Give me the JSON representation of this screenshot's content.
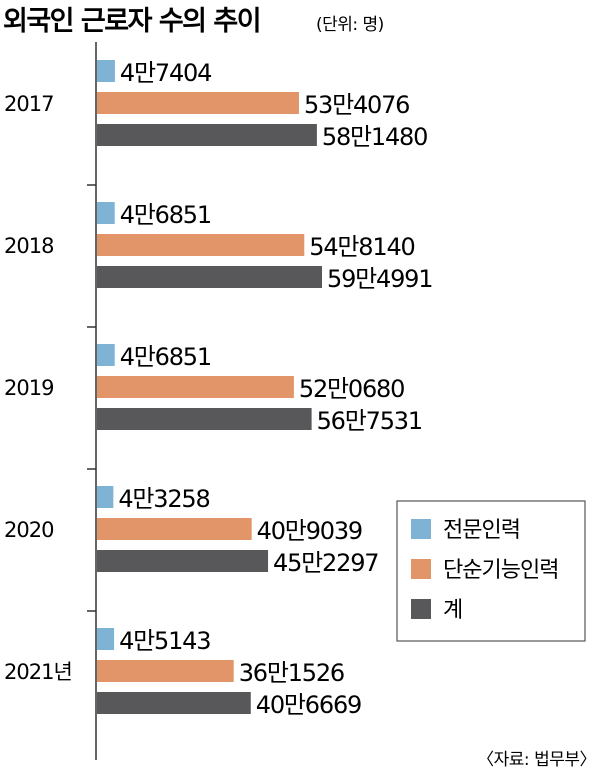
{
  "chart_data": {
    "type": "bar",
    "orientation": "horizontal",
    "title": "외국인 근로자 수의 추이",
    "unit_label": "(단위: 명)",
    "source": "〈자료: 법무부〉",
    "categories": [
      "2017",
      "2018",
      "2019",
      "2020",
      "2021년"
    ],
    "series": [
      {
        "name": "전문인력",
        "color": "#7fb3d5",
        "values": [
          47404,
          46851,
          46851,
          43258,
          45143
        ],
        "labels": [
          "4만7404",
          "4만6851",
          "4만6851",
          "4만3258",
          "4만5143"
        ]
      },
      {
        "name": "단순기능인력",
        "color": "#e3956a",
        "values": [
          534076,
          548140,
          520680,
          409039,
          361526
        ],
        "labels": [
          "53만4076",
          "54만8140",
          "52만0680",
          "40만9039",
          "36만1526"
        ]
      },
      {
        "name": "계",
        "color": "#58585a",
        "values": [
          581480,
          594991,
          567531,
          452297,
          406669
        ],
        "labels": [
          "58만1480",
          "59만4991",
          "56만7531",
          "45만2297",
          "40만6669"
        ]
      }
    ],
    "legend_position": "bottom-right",
    "grid": false
  }
}
